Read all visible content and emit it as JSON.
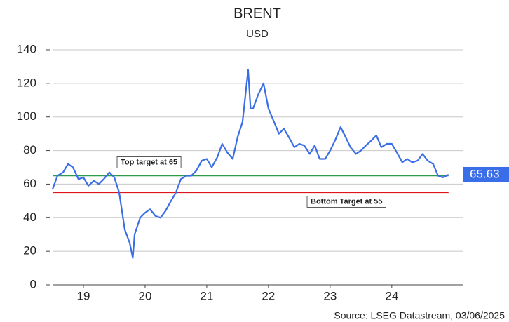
{
  "chart_data": {
    "type": "line",
    "title": "BRENT",
    "subtitle": "USD",
    "source": "Source: LSEG Datastream, 03/06/2025",
    "x": [
      2019.0,
      2019.08,
      2019.17,
      2019.25,
      2019.33,
      2019.42,
      2019.5,
      2019.58,
      2019.67,
      2019.75,
      2019.83,
      2019.92,
      2020.0,
      2020.08,
      2020.17,
      2020.25,
      2020.3,
      2020.33,
      2020.42,
      2020.5,
      2020.58,
      2020.67,
      2020.75,
      2020.83,
      2020.92,
      2021.0,
      2021.08,
      2021.17,
      2021.25,
      2021.33,
      2021.42,
      2021.5,
      2021.58,
      2021.67,
      2021.75,
      2021.83,
      2021.92,
      2022.0,
      2022.08,
      2022.17,
      2022.21,
      2022.25,
      2022.33,
      2022.42,
      2022.5,
      2022.58,
      2022.67,
      2022.75,
      2022.83,
      2022.92,
      2023.0,
      2023.08,
      2023.17,
      2023.25,
      2023.33,
      2023.42,
      2023.5,
      2023.58,
      2023.67,
      2023.75,
      2023.83,
      2023.92,
      2024.0,
      2024.08,
      2024.17,
      2024.25,
      2024.33,
      2024.42,
      2024.5,
      2024.58,
      2024.67,
      2024.75,
      2024.83,
      2024.92,
      2025.0,
      2025.08,
      2025.17,
      2025.25,
      2025.33,
      2025.42
    ],
    "values": [
      57,
      65,
      67,
      72,
      70,
      63,
      64,
      59,
      62,
      60,
      63,
      67,
      64,
      55,
      33,
      25,
      16,
      30,
      40,
      43,
      45,
      41,
      40,
      44,
      50,
      55,
      63,
      65,
      65,
      68,
      74,
      75,
      70,
      76,
      84,
      79,
      75,
      88,
      97,
      128,
      105,
      105,
      113,
      120,
      105,
      98,
      90,
      93,
      88,
      82,
      84,
      83,
      78,
      83,
      75,
      75,
      80,
      86,
      94,
      88,
      82,
      78,
      80,
      83,
      86,
      89,
      82,
      84,
      84,
      79,
      73,
      75,
      73,
      74,
      78,
      74,
      72,
      65,
      64,
      65.63
    ],
    "color": "#3a6ee8",
    "xlim": [
      2019,
      2025.65
    ],
    "xticks": [
      {
        "value": 2019.5,
        "label": "19"
      },
      {
        "value": 2020.5,
        "label": "20"
      },
      {
        "value": 2021.5,
        "label": "21"
      },
      {
        "value": 2022.5,
        "label": "22"
      },
      {
        "value": 2023.5,
        "label": "23"
      },
      {
        "value": 2024.5,
        "label": "24"
      }
    ],
    "ylim": [
      0,
      140
    ],
    "yticks": [
      0,
      20,
      40,
      60,
      80,
      100,
      120,
      140
    ],
    "grid": true,
    "reference_lines": [
      {
        "value": 65,
        "label": "Top target at 65",
        "color": "#2e9a4c"
      },
      {
        "value": 55,
        "label": "Bottom Target at 55",
        "color": "#e0141c"
      }
    ]
  }
}
